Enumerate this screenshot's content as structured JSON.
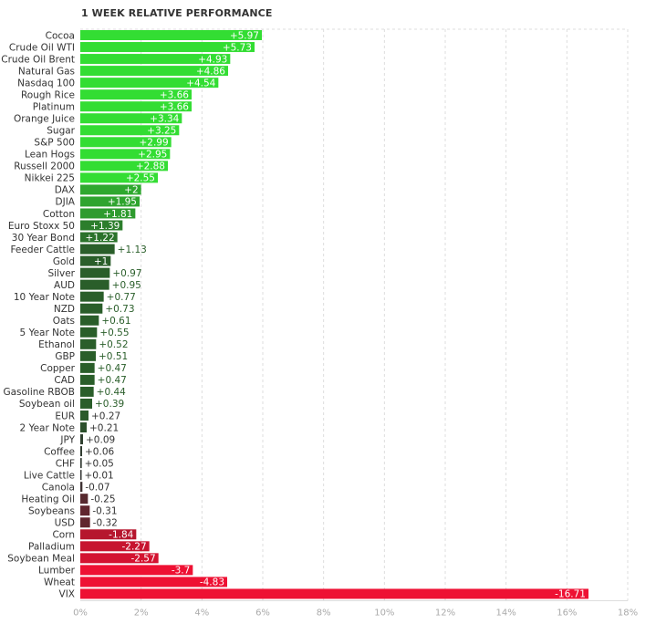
{
  "chart_data": {
    "type": "bar",
    "orientation": "horizontal",
    "title": "1 WEEK RELATIVE PERFORMANCE",
    "categories": [
      "Cocoa",
      "Crude Oil WTI",
      "Crude Oil Brent",
      "Natural Gas",
      "Nasdaq 100",
      "Rough Rice",
      "Platinum",
      "Orange Juice",
      "Sugar",
      "S&P 500",
      "Lean Hogs",
      "Russell 2000",
      "Nikkei 225",
      "DAX",
      "DJIA",
      "Cotton",
      "Euro Stoxx 50",
      "30 Year Bond",
      "Feeder Cattle",
      "Gold",
      "Silver",
      "AUD",
      "10 Year Note",
      "NZD",
      "Oats",
      "5 Year Note",
      "Ethanol",
      "GBP",
      "Copper",
      "CAD",
      "Gasoline RBOB",
      "Soybean oil",
      "EUR",
      "2 Year Note",
      "JPY",
      "Coffee",
      "CHF",
      "Live Cattle",
      "Canola",
      "Heating Oil",
      "Soybeans",
      "USD",
      "Corn",
      "Palladium",
      "Soybean Meal",
      "Lumber",
      "Wheat",
      "VIX"
    ],
    "values": [
      5.97,
      5.73,
      4.93,
      4.86,
      4.54,
      3.66,
      3.66,
      3.34,
      3.25,
      2.99,
      2.95,
      2.88,
      2.55,
      2,
      1.95,
      1.81,
      1.39,
      1.22,
      1.13,
      1,
      0.97,
      0.95,
      0.77,
      0.73,
      0.61,
      0.55,
      0.52,
      0.51,
      0.47,
      0.47,
      0.44,
      0.39,
      0.27,
      0.21,
      0.09,
      0.06,
      0.05,
      0.01,
      -0.07,
      -0.25,
      -0.31,
      -0.32,
      -1.84,
      -2.27,
      -2.57,
      -3.7,
      -4.83,
      -16.71
    ],
    "value_labels": [
      "+5.97",
      "+5.73",
      "+4.93",
      "+4.86",
      "+4.54",
      "+3.66",
      "+3.66",
      "+3.34",
      "+3.25",
      "+2.99",
      "+2.95",
      "+2.88",
      "+2.55",
      "+2",
      "+1.95",
      "+1.81",
      "+1.39",
      "+1.22",
      "+1.13",
      "+1",
      "+0.97",
      "+0.95",
      "+0.77",
      "+0.73",
      "+0.61",
      "+0.55",
      "+0.52",
      "+0.51",
      "+0.47",
      "+0.47",
      "+0.44",
      "+0.39",
      "+0.27",
      "+0.21",
      "+0.09",
      "+0.06",
      "+0.05",
      "+0.01",
      "-0.07",
      "-0.25",
      "-0.31",
      "-0.32",
      "-1.84",
      "-2.27",
      "-2.57",
      "-3.7",
      "-4.83",
      "-16.71"
    ],
    "xaxis": {
      "ticks": [
        0,
        2,
        4,
        6,
        8,
        10,
        12,
        14,
        16,
        18
      ],
      "tick_labels": [
        "0%",
        "2%",
        "4%",
        "6%",
        "8%",
        "10%",
        "12%",
        "14%",
        "16%",
        "18%"
      ],
      "range": [
        0,
        18
      ]
    },
    "bar_length": "absolute value",
    "grid": true,
    "colors": {
      "positive_bright": "#33dd33",
      "positive_dark": "#2a5e2a",
      "neutral": "#333333",
      "negative_dark": "#8a1a2a",
      "negative_bright": "#ee1133",
      "label_on_bar": "#ffffff",
      "label_positive": "#2a5e2a",
      "label_neutral": "#333333",
      "tick_label": "#aaaaaa",
      "grid": "#dddddd"
    }
  }
}
